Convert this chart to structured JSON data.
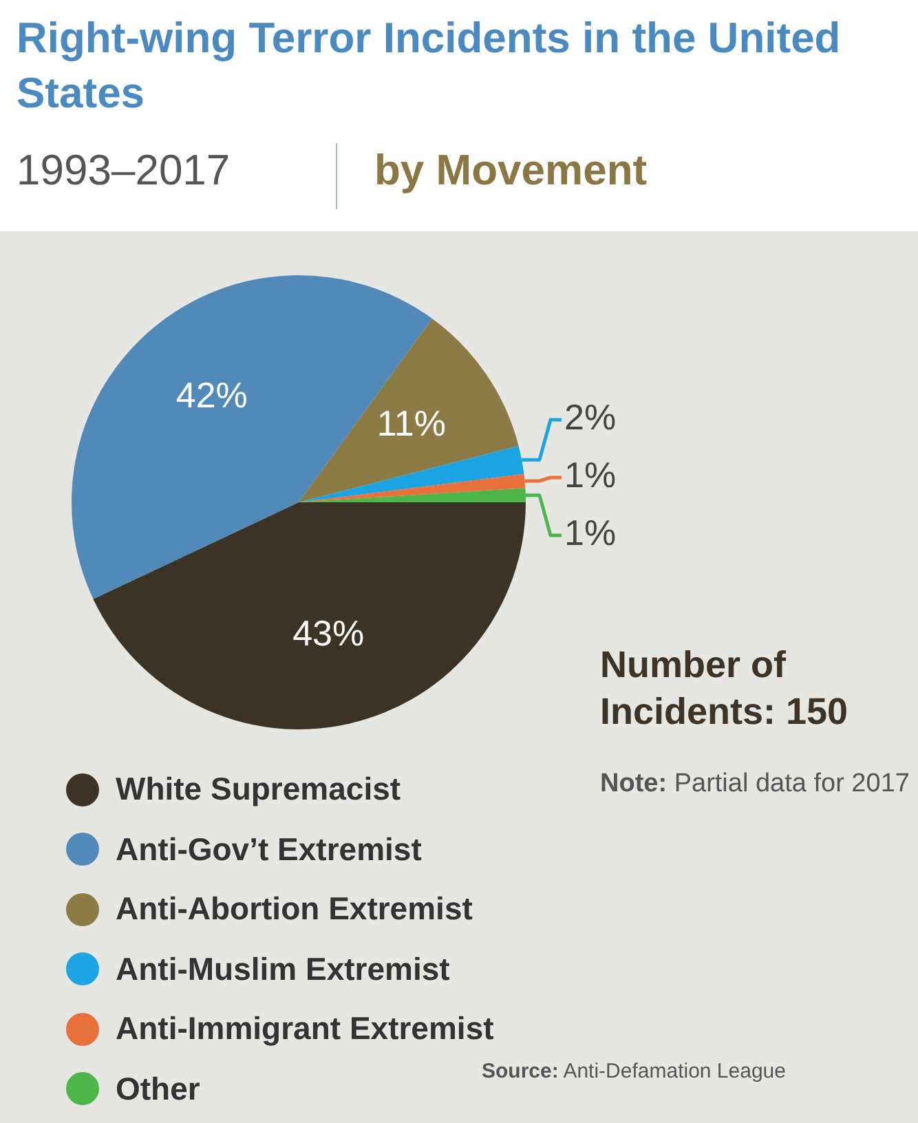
{
  "chart_data": {
    "type": "pie",
    "title": "Right-wing Terror Incidents in the United States",
    "subtitle": "1993–2017",
    "categories": [
      "White Supremacist",
      "Anti-Gov’t Extremist",
      "Anti-Abortion Extremist",
      "Anti-Muslim Extremist",
      "Anti-Immigrant Extremist",
      "Other"
    ],
    "values": [
      43,
      42,
      11,
      2,
      1,
      1
    ],
    "colors": [
      "#3b3326",
      "#5189b9",
      "#8d7b46",
      "#1ca4e2",
      "#e9713c",
      "#4db549"
    ],
    "value_labels": [
      "43%",
      "42%",
      "11%",
      "2%",
      "1%",
      "1%"
    ],
    "legend": "bottom left",
    "annotations": [
      "by Movement",
      "Number of Incidents: 150",
      "Note: Partial data for 2017",
      "Source: Anti-Defamation League"
    ]
  }
}
